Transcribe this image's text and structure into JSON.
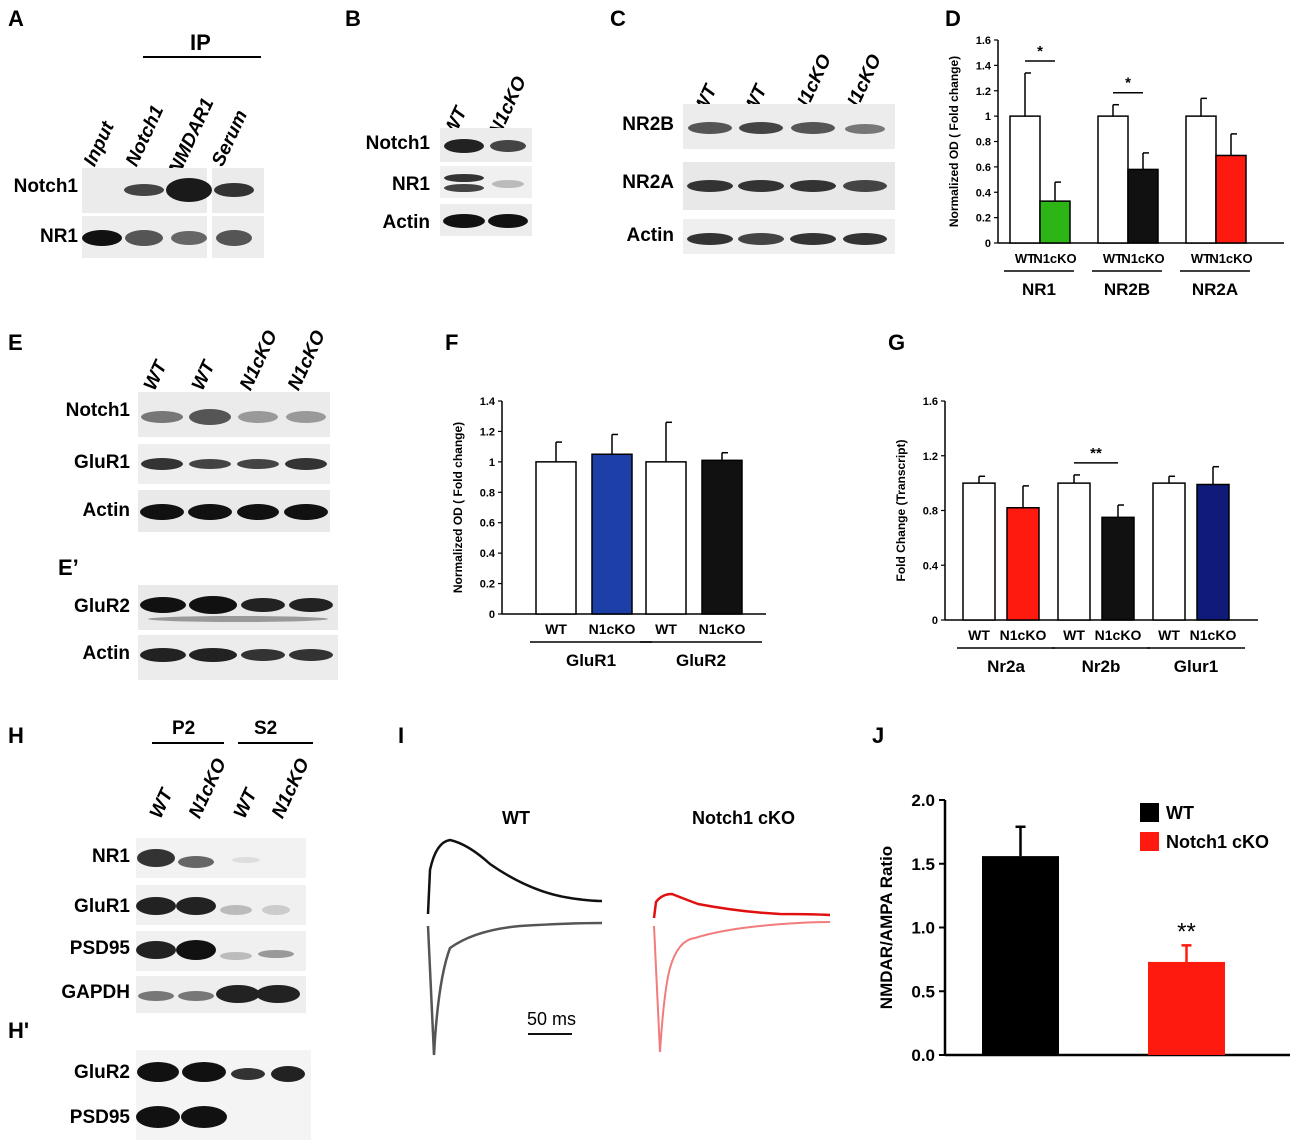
{
  "panels": {
    "A": {
      "letter": "A",
      "ip_label": "IP",
      "lanes": [
        "Input",
        "Notch1",
        "NMDAR1",
        "Serum"
      ],
      "rows": [
        "Notch1",
        "NR1"
      ]
    },
    "B": {
      "letter": "B",
      "lanes": [
        "WT",
        "N1cKO"
      ],
      "rows": [
        "Notch1",
        "NR1",
        "Actin"
      ]
    },
    "C": {
      "letter": "C",
      "lanes": [
        "WT",
        "WT",
        "N1cKO",
        "N1cKO"
      ],
      "rows": [
        "NR2B",
        "NR2A",
        "Actin"
      ]
    },
    "D": {
      "letter": "D"
    },
    "E": {
      "letter": "E",
      "letter_prime": "E’",
      "lanes": [
        "WT",
        "WT",
        "N1cKO",
        "N1cKO"
      ],
      "rows": [
        "Notch1",
        "GluR1",
        "Actin"
      ],
      "rows_prime": [
        "GluR2",
        "Actin"
      ]
    },
    "F": {
      "letter": "F"
    },
    "G": {
      "letter": "G"
    },
    "H": {
      "letter": "H",
      "letter_prime": "H'",
      "groups": [
        "P2",
        "S2"
      ],
      "lanes": [
        "WT",
        "N1cKO",
        "WT",
        "N1cKO"
      ],
      "rows": [
        "NR1",
        "GluR1",
        "PSD95",
        "GAPDH"
      ],
      "rows_prime": [
        "GluR2",
        "PSD95"
      ]
    },
    "I": {
      "letter": "I",
      "wt_label": "WT",
      "ko_label": "Notch1 cKO",
      "scale_label": "50 ms"
    },
    "J": {
      "letter": "J"
    }
  },
  "chart_data": [
    {
      "panel": "D",
      "type": "bar",
      "ylabel": "Normalized OD ( Fold change)",
      "ylim": [
        0,
        1.6
      ],
      "yticks": [
        "0",
        "0.2",
        "0.4",
        "0.6",
        "0.8",
        "1",
        "1.2",
        "1.4",
        "1.6"
      ],
      "groups": [
        {
          "name": "NR1",
          "bars": [
            {
              "label": "WT",
              "value": 1.0,
              "err": 0.34,
              "color": "#ffffff"
            },
            {
              "label": "N1cKO",
              "value": 0.33,
              "err": 0.15,
              "color": "#2db516"
            }
          ]
        },
        {
          "name": "NR2B",
          "bars": [
            {
              "label": "WT",
              "value": 1.0,
              "err": 0.09,
              "color": "#ffffff"
            },
            {
              "label": "N1cKO",
              "value": 0.58,
              "err": 0.13,
              "color": "#111111"
            }
          ]
        },
        {
          "name": "NR2A",
          "bars": [
            {
              "label": "WT",
              "value": 1.0,
              "err": 0.14,
              "color": "#ffffff"
            },
            {
              "label": "N1cKO",
              "value": 0.69,
              "err": 0.17,
              "color": "#ff1a10"
            }
          ]
        }
      ],
      "significance": [
        {
          "group": "NR1",
          "text": "*"
        },
        {
          "group": "NR2B",
          "text": "*"
        }
      ]
    },
    {
      "panel": "F",
      "type": "bar",
      "ylabel": "Normalized OD ( Fold change)",
      "ylim": [
        0,
        1.4
      ],
      "yticks": [
        "0",
        "0.2",
        "0.4",
        "0.6",
        "0.8",
        "1",
        "1.2",
        "1.4"
      ],
      "groups": [
        {
          "name": "GluR1",
          "bars": [
            {
              "label": "WT",
              "value": 1.0,
              "err": 0.13,
              "color": "#ffffff"
            },
            {
              "label": "N1cKO",
              "value": 1.05,
              "err": 0.13,
              "color": "#1c3fa8"
            }
          ]
        },
        {
          "name": "GluR2",
          "bars": [
            {
              "label": "WT",
              "value": 1.0,
              "err": 0.26,
              "color": "#ffffff"
            },
            {
              "label": "N1cKO",
              "value": 1.01,
              "err": 0.05,
              "color": "#111111"
            }
          ]
        }
      ],
      "significance": []
    },
    {
      "panel": "G",
      "type": "bar",
      "ylabel": "Fold Change (Transcript)",
      "ylim": [
        0,
        1.6
      ],
      "yticks": [
        "0",
        "0.4",
        "0.8",
        "1.2",
        "1.6"
      ],
      "groups": [
        {
          "name": "Nr2a",
          "bars": [
            {
              "label": "WT",
              "value": 1.0,
              "err": 0.05,
              "color": "#ffffff"
            },
            {
              "label": "N1cKO",
              "value": 0.82,
              "err": 0.16,
              "color": "#ff1a10"
            }
          ]
        },
        {
          "name": "Nr2b",
          "bars": [
            {
              "label": "WT",
              "value": 1.0,
              "err": 0.06,
              "color": "#ffffff"
            },
            {
              "label": "N1cKO",
              "value": 0.75,
              "err": 0.09,
              "color": "#111111"
            }
          ]
        },
        {
          "name": "Glur1",
          "bars": [
            {
              "label": "WT",
              "value": 1.0,
              "err": 0.05,
              "color": "#ffffff"
            },
            {
              "label": "N1cKO",
              "value": 0.99,
              "err": 0.13,
              "color": "#101a78"
            }
          ]
        }
      ],
      "significance": [
        {
          "group": "Nr2b",
          "text": "**"
        }
      ]
    },
    {
      "panel": "J",
      "type": "bar",
      "ylabel": "NMDAR/AMPA Ratio",
      "ylim": [
        0,
        2.0
      ],
      "yticks": [
        "0.0",
        "0.5",
        "1.0",
        "1.5",
        "2.0"
      ],
      "legend": [
        {
          "label": "WT",
          "color": "#000000"
        },
        {
          "label": "Notch1 cKO",
          "color": "#ff1a10"
        }
      ],
      "bars": [
        {
          "label": "WT",
          "value": 1.56,
          "err": 0.23,
          "color": "#000000"
        },
        {
          "label": "Notch1 cKO",
          "value": 0.73,
          "err": 0.13,
          "color": "#ff1a10"
        }
      ],
      "significance_text": "**"
    }
  ]
}
